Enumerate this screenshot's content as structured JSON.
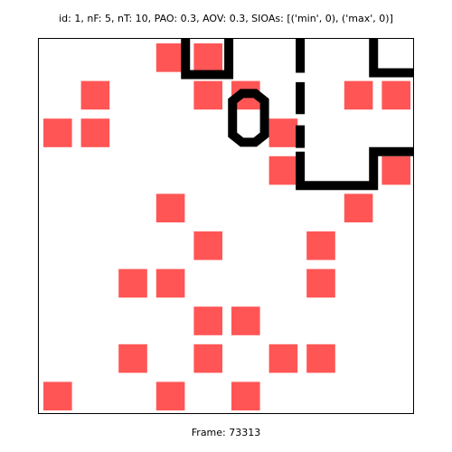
{
  "header": {
    "info_text": "id: 1, nF: 5, nT: 10, PAO: 0.3, AOV: 0.3, SIOAs: [('min', 0), ('max', 0)]"
  },
  "footer": {
    "frame_label": "Frame: 73313"
  },
  "board": {
    "grid_size": 10,
    "tile_color": "#ff5555",
    "trail_color": "#000000",
    "tiles": [
      {
        "col": 3,
        "row": 0
      },
      {
        "col": 4,
        "row": 0
      },
      {
        "col": 1,
        "row": 1
      },
      {
        "col": 4,
        "row": 1
      },
      {
        "col": 5,
        "row": 1
      },
      {
        "col": 8,
        "row": 1
      },
      {
        "col": 9,
        "row": 1
      },
      {
        "col": 0,
        "row": 2
      },
      {
        "col": 1,
        "row": 2
      },
      {
        "col": 6,
        "row": 2
      },
      {
        "col": 6,
        "row": 3
      },
      {
        "col": 9,
        "row": 3
      },
      {
        "col": 3,
        "row": 4
      },
      {
        "col": 8,
        "row": 4
      },
      {
        "col": 4,
        "row": 5
      },
      {
        "col": 7,
        "row": 5
      },
      {
        "col": 2,
        "row": 6
      },
      {
        "col": 3,
        "row": 6
      },
      {
        "col": 7,
        "row": 6
      },
      {
        "col": 4,
        "row": 7
      },
      {
        "col": 5,
        "row": 7
      },
      {
        "col": 2,
        "row": 8
      },
      {
        "col": 4,
        "row": 8
      },
      {
        "col": 6,
        "row": 8
      },
      {
        "col": 7,
        "row": 8
      },
      {
        "col": 0,
        "row": 9
      },
      {
        "col": 3,
        "row": 9
      },
      {
        "col": 5,
        "row": 9
      }
    ],
    "trails": [
      {
        "name": "trail-top-cup",
        "points": [
          [
            3.9,
            0
          ],
          [
            3.9,
            0.95
          ],
          [
            5.05,
            0.95
          ],
          [
            5.05,
            0
          ]
        ],
        "closed": false
      },
      {
        "name": "trail-ring",
        "points": [
          [
            5.15,
            2.1
          ],
          [
            5.15,
            1.65
          ],
          [
            5.4,
            1.45
          ],
          [
            5.75,
            1.45
          ],
          [
            6.0,
            1.65
          ],
          [
            6.0,
            2.55
          ],
          [
            5.75,
            2.75
          ],
          [
            5.4,
            2.75
          ],
          [
            5.15,
            2.55
          ]
        ],
        "closed": true
      },
      {
        "name": "trail-vertical-dash-1",
        "points": [
          [
            6.95,
            0
          ],
          [
            6.95,
            0.9
          ]
        ],
        "closed": false
      },
      {
        "name": "trail-vertical-dash-2",
        "points": [
          [
            6.95,
            1.15
          ],
          [
            6.95,
            2.0
          ]
        ],
        "closed": false
      },
      {
        "name": "trail-vertical-dash-3",
        "points": [
          [
            6.95,
            2.3
          ],
          [
            6.95,
            2.9
          ]
        ],
        "closed": false
      },
      {
        "name": "trail-lower-bracket",
        "points": [
          [
            6.95,
            3.0
          ],
          [
            6.95,
            3.9
          ],
          [
            8.9,
            3.9
          ],
          [
            8.9,
            3.0
          ],
          [
            10,
            3.0
          ]
        ],
        "closed": false
      },
      {
        "name": "trail-top-right-corner",
        "points": [
          [
            8.9,
            0
          ],
          [
            8.9,
            0.9
          ],
          [
            10,
            0.9
          ]
        ],
        "closed": false
      }
    ]
  }
}
